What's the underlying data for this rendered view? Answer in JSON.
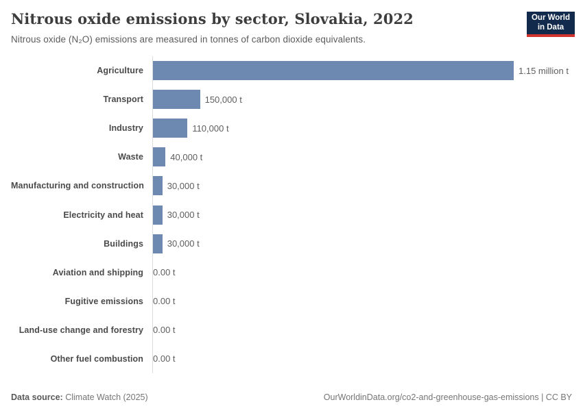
{
  "header": {
    "title": "Nitrous oxide emissions by sector, Slovakia, 2022",
    "subtitle": "Nitrous oxide (N₂O) emissions are measured in tonnes of carbon dioxide equivalents.",
    "logo": {
      "line1": "Our World",
      "line2": "in Data",
      "bg_color": "#122b4d",
      "accent_color": "#d0342c"
    }
  },
  "chart_data": {
    "type": "bar",
    "orientation": "horizontal",
    "title": "Nitrous oxide emissions by sector, Slovakia, 2022",
    "subtitle": "Nitrous oxide (N₂O) emissions are measured in tonnes of carbon dioxide equivalents.",
    "unit": "t",
    "categories": [
      "Agriculture",
      "Transport",
      "Industry",
      "Waste",
      "Manufacturing and construction",
      "Electricity and heat",
      "Buildings",
      "Aviation and shipping",
      "Fugitive emissions",
      "Land-use change and forestry",
      "Other fuel combustion"
    ],
    "values": [
      1150000,
      150000,
      110000,
      40000,
      30000,
      30000,
      30000,
      0,
      0,
      0,
      0
    ],
    "value_labels": [
      "1.15 million t",
      "150,000 t",
      "110,000 t",
      "40,000 t",
      "30,000 t",
      "30,000 t",
      "30,000 t",
      "0.00 t",
      "0.00 t",
      "0.00 t",
      "0.00 t"
    ],
    "xlim": [
      0,
      1150000
    ],
    "bar_color": "#6d89b2",
    "axis_color": "#dcdcdc",
    "grid": false,
    "legend": false
  },
  "footer": {
    "data_source_label": "Data source:",
    "data_source_value": "Climate Watch (2025)",
    "url_text": "OurWorldinData.org/co2-and-greenhouse-gas-emissions | CC BY"
  }
}
